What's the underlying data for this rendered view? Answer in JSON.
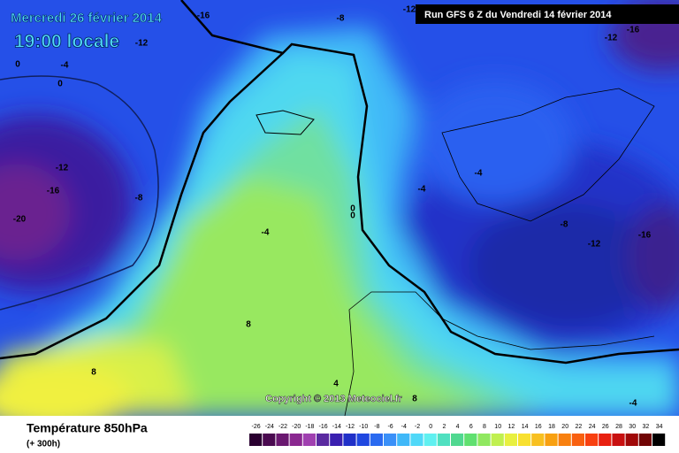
{
  "header": {
    "valid_date": "Mercredi 26 février 2014",
    "local_time": "19:00 locale",
    "run": "Run GFS 6 Z du Vendredi 14 février 2014"
  },
  "copyright": "Copyright © 2013 Meteociel.fr",
  "footer": {
    "title": "Température 850hPa",
    "lead_time": "(+ 300h)"
  },
  "contour_labels": [
    -16,
    -8,
    -12,
    -12,
    -12,
    -16,
    0,
    -4,
    0,
    -12,
    -16,
    -8,
    -20,
    -4,
    -4,
    -4,
    -8,
    -12,
    -16,
    0,
    0,
    8,
    8,
    4,
    8,
    -4
  ],
  "legend": {
    "values": [
      -26,
      -24,
      -22,
      -20,
      -18,
      -16,
      -14,
      -12,
      -10,
      -8,
      -6,
      -4,
      -2,
      0,
      2,
      4,
      6,
      8,
      10,
      12,
      14,
      16,
      18,
      20,
      22,
      24,
      26,
      28,
      30,
      32,
      34
    ],
    "colors": [
      "#2a0030",
      "#4a0a50",
      "#6a1870",
      "#8a2890",
      "#a040b0",
      "#5a2aa0",
      "#3a20b0",
      "#2030c8",
      "#2048e0",
      "#2a6af0",
      "#3a90f8",
      "#40b8f8",
      "#50d8f8",
      "#60f0f0",
      "#50e0c0",
      "#50d890",
      "#60e070",
      "#90e860",
      "#c0f050",
      "#e8f040",
      "#f8e030",
      "#f8c020",
      "#f8a010",
      "#f88010",
      "#f86010",
      "#f84010",
      "#e82010",
      "#c81010",
      "#a00808",
      "#700404",
      "#000000"
    ]
  }
}
